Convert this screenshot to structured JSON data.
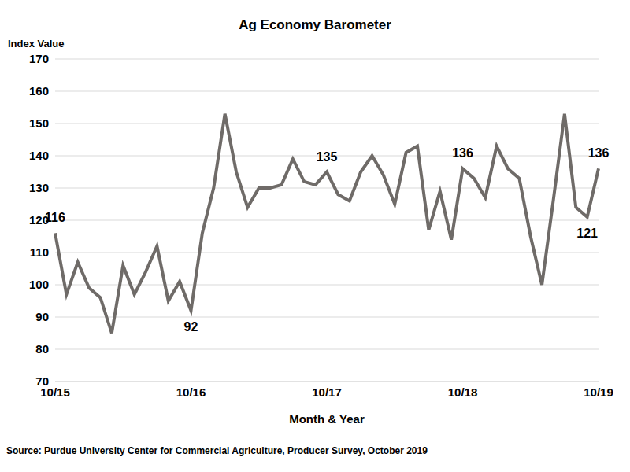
{
  "chart_data": {
    "type": "line",
    "title": "Ag Economy Barometer",
    "y_label": "Index Value",
    "x_label": "Month & Year",
    "source": "Source: Purdue University Center for Commercial Agriculture, Producer Survey, October 2019",
    "categories": [
      "10/15",
      null,
      null,
      null,
      null,
      null,
      null,
      null,
      null,
      null,
      null,
      null,
      "10/16",
      null,
      null,
      null,
      null,
      null,
      null,
      null,
      null,
      null,
      null,
      null,
      "10/17",
      null,
      null,
      null,
      null,
      null,
      null,
      null,
      null,
      null,
      null,
      null,
      "10/18",
      null,
      null,
      null,
      null,
      null,
      null,
      null,
      null,
      null,
      null,
      null,
      "10/19"
    ],
    "values": [
      116,
      97,
      107,
      99,
      96,
      85,
      106,
      97,
      104,
      112,
      95,
      101,
      92,
      116,
      130,
      153,
      135,
      124,
      130,
      130,
      131,
      139,
      132,
      131,
      135,
      128,
      126,
      135,
      140,
      134,
      125,
      141,
      143,
      117,
      129,
      114,
      136,
      133,
      127,
      143,
      136,
      133,
      115,
      100,
      126,
      153,
      124,
      121,
      136
    ],
    "color": "#6f6b68",
    "ylim": [
      70,
      170
    ],
    "yticks": [
      70,
      80,
      90,
      100,
      110,
      120,
      130,
      140,
      150,
      160,
      170
    ],
    "grid": true,
    "annotations": [
      {
        "index": 0,
        "value": 116
      },
      {
        "index": 12,
        "value": 92
      },
      {
        "index": 24,
        "value": 135
      },
      {
        "index": 36,
        "value": 136
      },
      {
        "index": 47,
        "value": 121
      },
      {
        "index": 48,
        "value": 136
      }
    ]
  }
}
